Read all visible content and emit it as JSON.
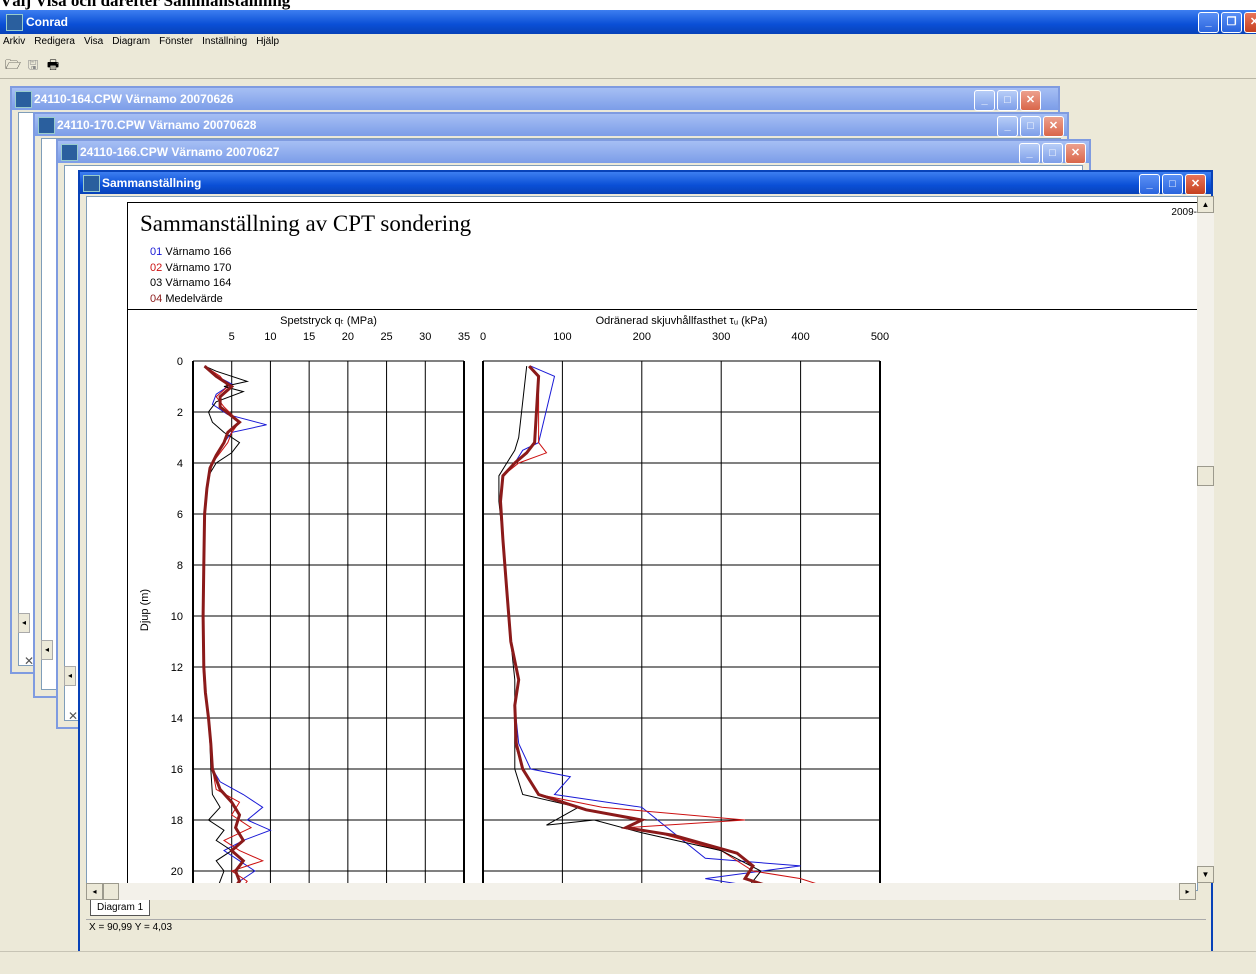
{
  "caption": "Välj Visa och därefter Sammanställning",
  "app": {
    "title": "Conrad"
  },
  "menu": [
    "Arkiv",
    "Redigera",
    "Visa",
    "Diagram",
    "Fönster",
    "Inställning",
    "Hjälp"
  ],
  "windows": [
    {
      "title": "24110-164.CPW  Värnamo 20070626"
    },
    {
      "title": "24110-170.CPW  Värnamo 20070628"
    },
    {
      "title": "24110-166.CPW  Värnamo 20070627"
    }
  ],
  "active_window": {
    "title": "Sammanställning"
  },
  "report": {
    "title": "Sammanställning av CPT sondering",
    "date": "2009-",
    "legend": [
      {
        "id": "01",
        "name": "Värnamo 166",
        "color": "#1a1ad6"
      },
      {
        "id": "02",
        "name": "Värnamo 170",
        "color": "#cc1111"
      },
      {
        "id": "03",
        "name": "Värnamo 164",
        "color": "#000000"
      },
      {
        "id": "04",
        "name": "Medelvärde",
        "color": "#8b1a1a"
      }
    ]
  },
  "chart_data": [
    {
      "type": "line",
      "xlabel": "Spetstryck qₜ (MPa)",
      "ylabel": "Djup (m)",
      "xticks": [
        5,
        10,
        15,
        20,
        25,
        30,
        35
      ],
      "yticks": [
        0,
        2,
        4,
        6,
        8,
        10,
        12,
        14,
        16,
        18,
        20
      ],
      "xlim": [
        0,
        35
      ],
      "ylim": [
        0,
        20.8
      ],
      "series": [
        {
          "name": "01",
          "color": "#1a1ad6",
          "points": [
            [
              1.5,
              0.2
            ],
            [
              2.5,
              0.5
            ],
            [
              5,
              0.9
            ],
            [
              3,
              1.3
            ],
            [
              2.5,
              1.7
            ],
            [
              4.5,
              2.1
            ],
            [
              9.5,
              2.5
            ],
            [
              5,
              2.8
            ],
            [
              4,
              3.2
            ],
            [
              3,
              3.7
            ],
            [
              2.2,
              4.2
            ],
            [
              1.8,
              5
            ],
            [
              1.5,
              6
            ],
            [
              1.4,
              8
            ],
            [
              1.3,
              10
            ],
            [
              1.4,
              12
            ],
            [
              1.6,
              13
            ],
            [
              2,
              14
            ],
            [
              2.2,
              15
            ],
            [
              2.5,
              16
            ],
            [
              3.5,
              16.5
            ],
            [
              6.5,
              17
            ],
            [
              9,
              17.5
            ],
            [
              7,
              18
            ],
            [
              10,
              18.4
            ],
            [
              6.5,
              18.8
            ],
            [
              4,
              19.2
            ],
            [
              6,
              19.6
            ],
            [
              8,
              20
            ],
            [
              6,
              20.4
            ],
            [
              5,
              20.8
            ]
          ]
        },
        {
          "name": "02",
          "color": "#cc1111",
          "points": [
            [
              1.5,
              0.2
            ],
            [
              3.5,
              0.6
            ],
            [
              4.5,
              1
            ],
            [
              3,
              1.4
            ],
            [
              4,
              1.8
            ],
            [
              6,
              2.4
            ],
            [
              5,
              2.8
            ],
            [
              4.5,
              3.2
            ],
            [
              3.5,
              3.6
            ],
            [
              2.5,
              4
            ],
            [
              1.8,
              5
            ],
            [
              1.5,
              6
            ],
            [
              1.4,
              8
            ],
            [
              1.3,
              10
            ],
            [
              1.3,
              12
            ],
            [
              1.5,
              13
            ],
            [
              2,
              14
            ],
            [
              2.3,
              15
            ],
            [
              2.5,
              16
            ],
            [
              3,
              16.8
            ],
            [
              6,
              17.3
            ],
            [
              5,
              17.8
            ],
            [
              7.5,
              18.3
            ],
            [
              4,
              18.8
            ],
            [
              6,
              19.2
            ],
            [
              9,
              19.6
            ],
            [
              5,
              20
            ],
            [
              7,
              20.4
            ],
            [
              6,
              20.8
            ]
          ]
        },
        {
          "name": "03",
          "color": "#000000",
          "points": [
            [
              1.5,
              0.2
            ],
            [
              3,
              0.4
            ],
            [
              7,
              0.8
            ],
            [
              4,
              1
            ],
            [
              6.5,
              1.2
            ],
            [
              3,
              1.6
            ],
            [
              2,
              2
            ],
            [
              2.5,
              2.4
            ],
            [
              4,
              2.8
            ],
            [
              6,
              3.2
            ],
            [
              5,
              3.6
            ],
            [
              3,
              4
            ],
            [
              2,
              4.5
            ],
            [
              1.8,
              5
            ],
            [
              1.5,
              6
            ],
            [
              1.4,
              8
            ],
            [
              1.3,
              10
            ],
            [
              1.4,
              12
            ],
            [
              1.6,
              13
            ],
            [
              2,
              14
            ],
            [
              2.2,
              15
            ],
            [
              2.3,
              16
            ],
            [
              2.5,
              17
            ],
            [
              3.5,
              17.5
            ],
            [
              2,
              18
            ],
            [
              4,
              18.4
            ],
            [
              3,
              18.8
            ],
            [
              5,
              19.2
            ],
            [
              3,
              19.6
            ],
            [
              4,
              20
            ],
            [
              3.5,
              20.4
            ],
            [
              3,
              20.8
            ]
          ]
        },
        {
          "name": "04",
          "color": "#8b1a1a",
          "points": [
            [
              1.5,
              0.2
            ],
            [
              3,
              0.6
            ],
            [
              5,
              1
            ],
            [
              3.5,
              1.4
            ],
            [
              3.5,
              1.8
            ],
            [
              6,
              2.4
            ],
            [
              4.5,
              2.8
            ],
            [
              4,
              3.2
            ],
            [
              3,
              3.7
            ],
            [
              2.2,
              4.2
            ],
            [
              1.8,
              5
            ],
            [
              1.5,
              6
            ],
            [
              1.4,
              8
            ],
            [
              1.3,
              10
            ],
            [
              1.4,
              12
            ],
            [
              1.6,
              13
            ],
            [
              2,
              14
            ],
            [
              2.3,
              15
            ],
            [
              2.5,
              16
            ],
            [
              3.5,
              16.8
            ],
            [
              5,
              17.3
            ],
            [
              6,
              17.8
            ],
            [
              5.5,
              18.3
            ],
            [
              6.5,
              18.8
            ],
            [
              5,
              19.2
            ],
            [
              6.5,
              19.6
            ],
            [
              5.5,
              20
            ],
            [
              6,
              20.4
            ],
            [
              5,
              20.8
            ]
          ]
        }
      ]
    },
    {
      "type": "line",
      "xlabel": "Odränerad skjuvhållfasthet τᵤ (kPa)",
      "xticks": [
        0,
        100,
        200,
        300,
        400,
        500
      ],
      "xlim": [
        0,
        500
      ],
      "ylim": [
        0,
        20.8
      ],
      "series": [
        {
          "name": "01",
          "color": "#1a1ad6",
          "points": [
            [
              60,
              0.2
            ],
            [
              90,
              0.6
            ],
            [
              70,
              3.2
            ],
            [
              50,
              3.5
            ],
            [
              40,
              4
            ],
            [
              25,
              4.5
            ],
            [
              22,
              5.5
            ],
            [
              25,
              7
            ],
            [
              30,
              9
            ],
            [
              35,
              11
            ],
            [
              45,
              12.5
            ],
            [
              40,
              13.5
            ],
            [
              45,
              15
            ],
            [
              60,
              16
            ],
            [
              110,
              16.3
            ],
            [
              90,
              17
            ],
            [
              200,
              17.5
            ],
            [
              280,
              19.5
            ],
            [
              400,
              19.8
            ],
            [
              280,
              20.3
            ],
            [
              380,
              20.8
            ]
          ]
        },
        {
          "name": "02",
          "color": "#cc1111",
          "points": [
            [
              60,
              0.2
            ],
            [
              70,
              0.6
            ],
            [
              70,
              3.2
            ],
            [
              80,
              3.6
            ],
            [
              45,
              4
            ],
            [
              25,
              4.5
            ],
            [
              22,
              5.5
            ],
            [
              25,
              7
            ],
            [
              30,
              9
            ],
            [
              35,
              11
            ],
            [
              45,
              12.5
            ],
            [
              40,
              13.5
            ],
            [
              40,
              15
            ],
            [
              50,
              16
            ],
            [
              70,
              17
            ],
            [
              150,
              17.5
            ],
            [
              330,
              18
            ],
            [
              180,
              18.3
            ],
            [
              220,
              18.5
            ],
            [
              300,
              19.2
            ],
            [
              340,
              20
            ],
            [
              400,
              20.3
            ],
            [
              450,
              20.8
            ]
          ]
        },
        {
          "name": "03",
          "color": "#000000",
          "points": [
            [
              55,
              0.2
            ],
            [
              45,
              3
            ],
            [
              40,
              3.5
            ],
            [
              30,
              4
            ],
            [
              20,
              4.5
            ],
            [
              20,
              5.5
            ],
            [
              25,
              7
            ],
            [
              30,
              9
            ],
            [
              35,
              11
            ],
            [
              40,
              12.5
            ],
            [
              40,
              13.5
            ],
            [
              40,
              15
            ],
            [
              40,
              16
            ],
            [
              50,
              17
            ],
            [
              120,
              17.5
            ],
            [
              80,
              18.2
            ],
            [
              140,
              18
            ],
            [
              200,
              18.5
            ],
            [
              300,
              19.2
            ],
            [
              350,
              20
            ],
            [
              330,
              20.8
            ]
          ]
        },
        {
          "name": "04",
          "color": "#8b1a1a",
          "points": [
            [
              58,
              0.2
            ],
            [
              70,
              0.6
            ],
            [
              65,
              3.2
            ],
            [
              55,
              3.6
            ],
            [
              40,
              4
            ],
            [
              25,
              4.5
            ],
            [
              22,
              5.5
            ],
            [
              25,
              7
            ],
            [
              30,
              9
            ],
            [
              35,
              11
            ],
            [
              45,
              12.5
            ],
            [
              40,
              13.5
            ],
            [
              42,
              15
            ],
            [
              50,
              16
            ],
            [
              70,
              17
            ],
            [
              130,
              17.6
            ],
            [
              200,
              18
            ],
            [
              180,
              18.3
            ],
            [
              240,
              18.6
            ],
            [
              320,
              19.3
            ],
            [
              340,
              19.8
            ],
            [
              330,
              20.3
            ],
            [
              380,
              20.8
            ]
          ]
        }
      ]
    }
  ],
  "ui": {
    "tab": "Diagram 1",
    "coords": "X = 90,99  Y = 4,03"
  }
}
